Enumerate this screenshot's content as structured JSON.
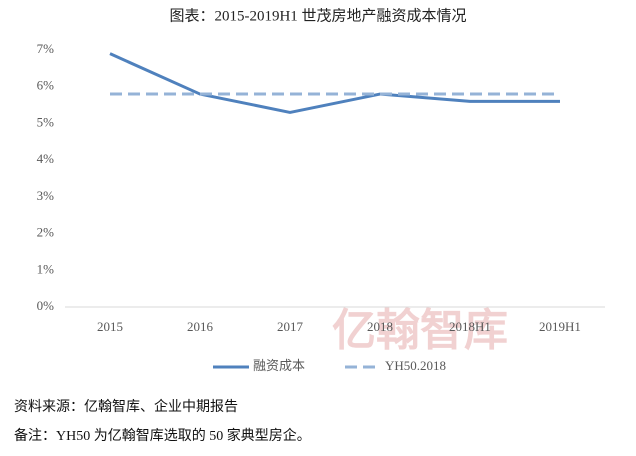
{
  "chart_data": {
    "type": "line",
    "title": "图表：2015-2019H1 世茂房地产融资成本情况",
    "categories": [
      "2015",
      "2016",
      "2017",
      "2018",
      "2018H1",
      "2019H1"
    ],
    "series": [
      {
        "name": "融资成本",
        "color": "#4f81bd",
        "dash": false,
        "values": [
          6.9,
          5.8,
          5.3,
          5.8,
          5.6,
          5.6
        ]
      },
      {
        "name": "YH50.2018",
        "color": "#95b3d7",
        "dash": true,
        "values": [
          5.8,
          5.8,
          5.8,
          5.8,
          5.8,
          5.8
        ]
      }
    ],
    "ylim": [
      0,
      7
    ],
    "yticks": [
      {
        "value": 0,
        "label": "0%"
      },
      {
        "value": 1,
        "label": "1%"
      },
      {
        "value": 2,
        "label": "2%"
      },
      {
        "value": 3,
        "label": "3%"
      },
      {
        "value": 4,
        "label": "4%"
      },
      {
        "value": 5,
        "label": "5%"
      },
      {
        "value": 6,
        "label": "6%"
      },
      {
        "value": 7,
        "label": "7%"
      }
    ],
    "grid": false,
    "legend": "bottom",
    "watermark": "亿翰智库",
    "notes": [
      "资料来源：亿翰智库、企业中期报告",
      "备注：YH50 为亿翰智库选取的 50 家典型房企。"
    ]
  }
}
